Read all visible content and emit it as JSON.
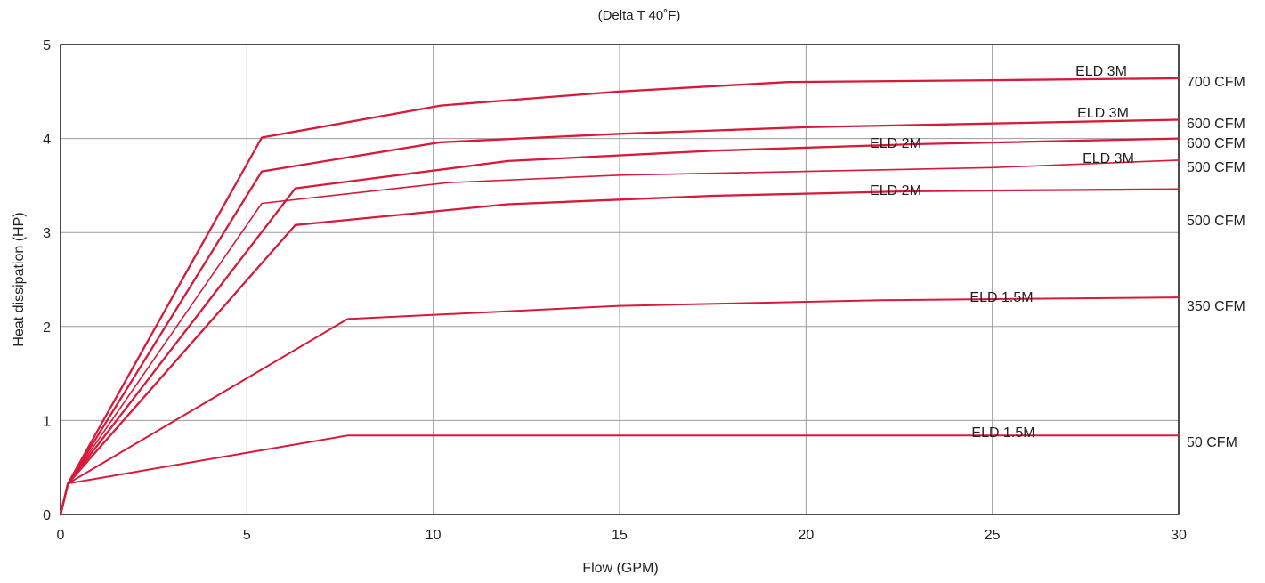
{
  "chart_data": {
    "type": "line",
    "title": "(Delta T 40˚F)",
    "xlabel": "Flow (GPM)",
    "ylabel": "Heat dissipation  (HP)",
    "xlim": [
      0,
      30
    ],
    "ylim": [
      0,
      5
    ],
    "xticks": [
      "0",
      "5",
      "10",
      "15",
      "20",
      "25",
      "30"
    ],
    "yticks": [
      "0",
      "1",
      "2",
      "3",
      "4",
      "5"
    ],
    "grid": true,
    "line_color": "#d7193a",
    "series": [
      {
        "name": "ELD 3M",
        "airflow": "700 CFM",
        "x": [
          0,
          0.2,
          5.4,
          10.2,
          15.0,
          19.5,
          25.0,
          30.0
        ],
        "y": [
          0,
          0.33,
          4.01,
          4.35,
          4.5,
          4.6,
          4.62,
          4.64
        ]
      },
      {
        "name": "ELD 3M",
        "airflow": "600 CFM",
        "x": [
          0,
          0.2,
          5.4,
          10.2,
          15.0,
          20.0,
          25.0,
          30.0
        ],
        "y": [
          0,
          0.33,
          3.65,
          3.96,
          4.05,
          4.12,
          4.16,
          4.2
        ]
      },
      {
        "name": "ELD 2M",
        "airflow": "600 CFM",
        "x": [
          0,
          0.2,
          6.3,
          12.0,
          17.5,
          23.0,
          30.0
        ],
        "y": [
          0,
          0.33,
          3.47,
          3.76,
          3.87,
          3.94,
          4.0
        ]
      },
      {
        "name": "ELD 3M",
        "airflow": "500 CFM",
        "x": [
          0,
          0.2,
          5.4,
          10.4,
          15.0,
          20.0,
          25.0,
          30.0
        ],
        "y": [
          0,
          0.33,
          3.31,
          3.53,
          3.61,
          3.65,
          3.69,
          3.77
        ]
      },
      {
        "name": "ELD 2M",
        "airflow": "500 CFM",
        "x": [
          0,
          0.2,
          6.3,
          12.0,
          17.5,
          23.0,
          30.0
        ],
        "y": [
          0,
          0.33,
          3.08,
          3.3,
          3.39,
          3.44,
          3.46
        ]
      },
      {
        "name": "ELD 1.5M",
        "airflow": "350 CFM",
        "x": [
          0,
          0.2,
          7.7,
          15.0,
          22.0,
          30.0
        ],
        "y": [
          0,
          0.33,
          2.08,
          2.22,
          2.28,
          2.31
        ]
      },
      {
        "name": "ELD 1.5M",
        "airflow": "50 CFM",
        "x": [
          0,
          0.2,
          7.7,
          15.0,
          22.0,
          30.0
        ],
        "y": [
          0,
          0.33,
          0.84,
          0.84,
          0.84,
          0.84
        ]
      }
    ]
  }
}
